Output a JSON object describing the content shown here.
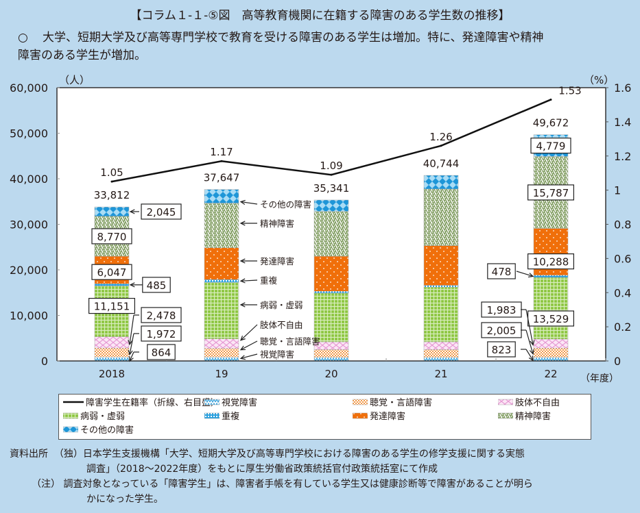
{
  "header": {
    "title": "【コラム１-１-⑤図　高等教育機関に在籍する障害のある学生数の推移】",
    "bullet": "○",
    "lead_line1": "大学、短期大学及び高等専門学校で教育を受ける障害のある学生は増加。特に、発達障害や精神",
    "lead_line2": "障害のある学生が増加。"
  },
  "colors": {
    "background": "#bcd9ee",
    "visual": "#3aa3dc",
    "hearing": "#f39a4a",
    "physical": "#e596d2",
    "illness": "#8cc63f",
    "multiple": "#2aa0de",
    "developmental": "#f06f0a",
    "mental": "#7d9a5c",
    "other": "#1e96d8",
    "line": "#111111"
  },
  "chart_data": {
    "type": "bar",
    "stacked": true,
    "categories": [
      "2018",
      "19",
      "20",
      "21",
      "22"
    ],
    "xlabel": "（年度）",
    "ylabel_left": "（人）",
    "ylabel_right": "（%）",
    "ylim_left": [
      0,
      60000
    ],
    "ylim_right": [
      0,
      1.6
    ],
    "yticks_left": [
      "0",
      "10,000",
      "20,000",
      "30,000",
      "40,000",
      "50,000",
      "60,000"
    ],
    "yticks_right": [
      "0",
      "0.2",
      "0.4",
      "0.6",
      "0.8",
      "1",
      "1.2",
      "1.4",
      "1.6"
    ],
    "series": [
      {
        "name": "視覚障害",
        "key": "visual",
        "values": [
          864,
          850,
          800,
          800,
          823
        ]
      },
      {
        "name": "聴覚・言語障害",
        "key": "hearing",
        "values": [
          1972,
          1900,
          1700,
          1700,
          2005
        ]
      },
      {
        "name": "肢体不自由",
        "key": "physical",
        "values": [
          2478,
          2100,
          1700,
          1700,
          1983
        ]
      },
      {
        "name": "病弱・虚弱",
        "key": "illness",
        "values": [
          11151,
          12400,
          10700,
          12000,
          13529
        ]
      },
      {
        "name": "重複",
        "key": "multiple",
        "values": [
          485,
          600,
          400,
          400,
          478
        ]
      },
      {
        "name": "発達障害",
        "key": "developmental",
        "values": [
          6047,
          7000,
          7700,
          8700,
          10288
        ]
      },
      {
        "name": "精神障害",
        "key": "mental",
        "values": [
          8770,
          9800,
          9841,
          12444,
          15787
        ]
      },
      {
        "name": "その他の障害",
        "key": "other",
        "values": [
          2045,
          2997,
          2500,
          3000,
          4779
        ]
      }
    ],
    "totals": [
      "33,812",
      "37,647",
      "35,341",
      "40,744",
      "49,672"
    ],
    "total_values": [
      33812,
      37647,
      35341,
      40744,
      49672
    ],
    "line": {
      "name": "障害学生在籍率（折線、右目盛）",
      "values": [
        1.05,
        1.17,
        1.09,
        1.26,
        1.53
      ],
      "labels": [
        "1.05",
        "1.17",
        "1.09",
        "1.26",
        "1.53"
      ]
    },
    "callouts_2018": {
      "other": "2,045",
      "mental": "8,770",
      "developmental": "6,047",
      "multiple": "485",
      "illness": "11,151",
      "physical": "2,478",
      "hearing": "1,972",
      "visual": "864"
    },
    "callouts_2022": {
      "other": "4,779",
      "mental": "15,787",
      "developmental": "10,288",
      "multiple": "478",
      "illness": "13,529",
      "physical": "1,983",
      "hearing": "2,005",
      "visual": "823"
    },
    "annotations_2019": [
      "その他の障害",
      "精神障害",
      "発達障害",
      "重複",
      "病弱・虚弱",
      "肢体不自由",
      "聴覚・言語障害",
      "視覚障害"
    ]
  },
  "legend": {
    "items": [
      {
        "label": "障害学生在籍率（折線、右目盛）",
        "key": "line"
      },
      {
        "label": "視覚障害",
        "key": "visual"
      },
      {
        "label": "聴覚・言語障害",
        "key": "hearing"
      },
      {
        "label": "肢体不自由",
        "key": "physical"
      },
      {
        "label": "病弱・虚弱",
        "key": "illness"
      },
      {
        "label": "重複",
        "key": "multiple"
      },
      {
        "label": "発達障害",
        "key": "developmental"
      },
      {
        "label": "精神障害",
        "key": "mental"
      },
      {
        "label": "その他の障害",
        "key": "other"
      }
    ]
  },
  "notes": {
    "source_label": "資料出所",
    "source_line1": "（独）日本学生支援機構「大学、短期大学及び高等専門学校における障害のある学生の修学支援に関する実態",
    "source_line2": "調査」（2018～2022年度）をもとに厚生労働省政策統括官付政策統括室にて作成",
    "note_label": "（注）",
    "note_line1": "調査対象となっている「障害学生」は、障害者手帳を有している学生又は健康診断等で障害があることが明ら",
    "note_line2": "かになった学生。"
  }
}
